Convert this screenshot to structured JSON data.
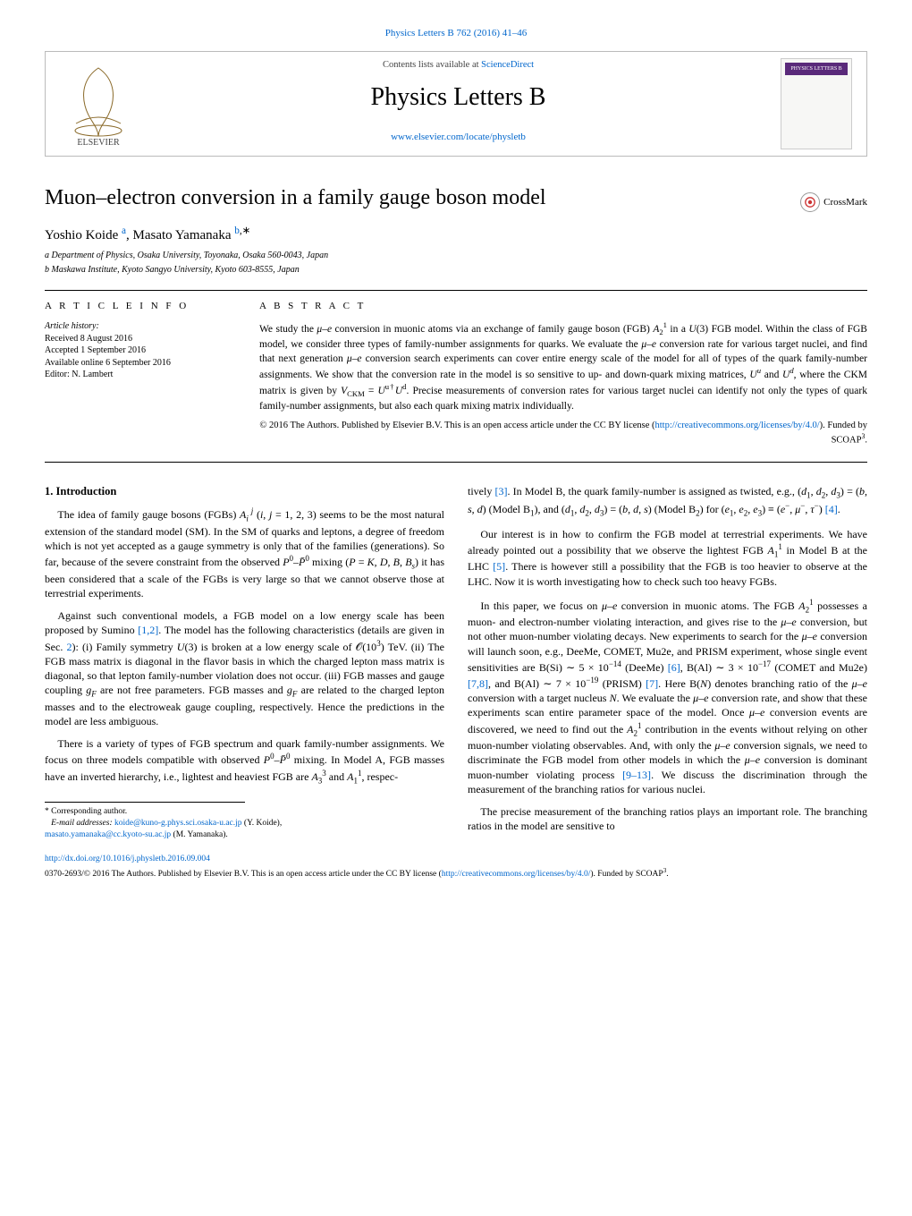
{
  "header": {
    "top_link": "Physics Letters B 762 (2016) 41–46",
    "contents_line_prefix": "Contents lists available at ",
    "contents_line_link": "ScienceDirect",
    "journal_title": "Physics Letters B",
    "journal_link": "www.elsevier.com/locate/physletb",
    "thumb_bar": "PHYSICS LETTERS B",
    "logo_text": "ELSEVIER"
  },
  "crossmark": {
    "label": "CrossMark"
  },
  "title": "Muon–electron conversion in a family gauge boson model",
  "authors_html": "Yoshio Koide <sup class='s'><span style='color:#0066cc'>a</span></sup>, Masato Yamanaka <sup class='s'><span style='color:#0066cc'>b</span>,∗</sup>",
  "affiliations": [
    "a  Department of Physics, Osaka University, Toyonaka, Osaka 560-0043, Japan",
    "b  Maskawa Institute, Kyoto Sangyo University, Kyoto 603-8555, Japan"
  ],
  "info": {
    "head": "A R T I C L E   I N F O",
    "history_label": "Article history:",
    "lines": [
      "Received 8 August 2016",
      "Accepted 1 September 2016",
      "Available online 6 September 2016",
      "Editor: N. Lambert"
    ]
  },
  "abstract": {
    "head": "A B S T R A C T",
    "body_html": "We study the <i>μ</i>–<i>e</i> conversion in muonic atoms via an exchange of family gauge boson (FGB) <i>A</i><sub class='s'>2</sub><sup class='s'>1</sup> in a <i>U</i>(3) FGB model. Within the class of FGB model, we consider three types of family-number assignments for quarks. We evaluate the <i>μ</i>–<i>e</i> conversion rate for various target nuclei, and find that next generation <i>μ</i>–<i>e</i> conversion search experiments can cover entire energy scale of the model for all of types of the quark family-number assignments. We show that the conversion rate in the model is so sensitive to up- and down-quark mixing matrices, <i>U<sup class='s'>u</sup></i> and <i>U<sup class='s'>d</sup></i>, where the CKM matrix is given by <i>V</i><sub class='s'>CKM</sub> = <i>U</i><sup class='s'>u†</sup><i>U</i><sup class='s'>d</sup>. Precise measurements of conversion rates for various target nuclei can identify not only the types of quark family-number assignments, but also each quark mixing matrix individually.",
    "license_html": "© 2016 The Authors. Published by Elsevier B.V. This is an open access article under the CC BY license (<a class='link'>http://creativecommons.org/licenses/by/4.0/</a>). Funded by SCOAP<sup class='s'>3</sup>."
  },
  "body": {
    "sec1_title": "1. Introduction",
    "left_paras": [
      "The idea of family gauge bosons (FGBs) <i>A<sub class='s'>i</sub><sup class='s'>&nbsp;j</sup></i> (<i>i</i>, <i>j</i> = 1, 2, 3) seems to be the most natural extension of the standard model (SM). In the SM of quarks and leptons, a degree of freedom which is not yet accepted as a gauge symmetry is only that of the families (generations). So far, because of the severe constraint from the observed <i>P</i><sup class='s'>0</sup>–<i>P̄</i><sup class='s'>0</sup> mixing (<i>P</i> = <i>K</i>, <i>D</i>, <i>B</i>, <i>B<sub class='s'>s</sub></i>) it has been considered that a scale of the FGBs is very large so that we cannot observe those at terrestrial experiments.",
      "Against such conventional models, a FGB model on a low energy scale has been proposed by Sumino <a class='link'>[1,2]</a>. The model has the following characteristics (details are given in Sec. <a class='link'>2</a>): (i) Family symmetry <i>U</i>(3) is broken at a low energy scale of 𝒪(10<sup class='s'>3</sup>) TeV. (ii) The FGB mass matrix is diagonal in the flavor basis in which the charged lepton mass matrix is diagonal, so that lepton family-number violation does not occur. (iii) FGB masses and gauge coupling <i>g<sub class='s'>F</sub></i> are not free parameters. FGB masses and <i>g<sub class='s'>F</sub></i> are related to the charged lepton masses and to the electroweak gauge coupling, respectively. Hence the predictions in the model are less ambiguous.",
      "There is a variety of types of FGB spectrum and quark family-number assignments. We focus on three models compatible with observed <i>P</i><sup class='s'>0</sup>–<i>P̄</i><sup class='s'>0</sup> mixing. In Model A, FGB masses have an inverted hierarchy, i.e., lightest and heaviest FGB are <i>A</i><sub class='s'>3</sub><sup class='s'>3</sup> and <i>A</i><sub class='s'>1</sub><sup class='s'>1</sup>, respec-"
    ],
    "right_paras": [
      "tively <a class='link'>[3]</a>. In Model B, the quark family-number is assigned as twisted, e.g., (<i>d</i><sub class='s'>1</sub>, <i>d</i><sub class='s'>2</sub>, <i>d</i><sub class='s'>3</sub>) = (<i>b</i>, <i>s</i>, <i>d</i>) (Model B<sub class='s'>1</sub>), and (<i>d</i><sub class='s'>1</sub>, <i>d</i><sub class='s'>2</sub>, <i>d</i><sub class='s'>3</sub>) = (<i>b</i>, <i>d</i>, <i>s</i>) (Model B<sub class='s'>2</sub>) for (<i>e</i><sub class='s'>1</sub>, <i>e</i><sub class='s'>2</sub>, <i>e</i><sub class='s'>3</sub>) ≡ (<i>e</i><sup class='s'>−</sup>, <i>μ</i><sup class='s'>−</sup>, <i>τ</i><sup class='s'>−</sup>) <a class='link'>[4]</a>.",
      "Our interest is in how to confirm the FGB model at terrestrial experiments. We have already pointed out a possibility that we observe the lightest FGB <i>A</i><sub class='s'>1</sub><sup class='s'>1</sup> in Model B at the LHC <a class='link'>[5]</a>. There is however still a possibility that the FGB is too heavier to observe at the LHC. Now it is worth investigating how to check such too heavy FGBs.",
      "In this paper, we focus on <i>μ</i>–<i>e</i> conversion in muonic atoms. The FGB <i>A</i><sub class='s'>2</sub><sup class='s'>1</sup> possesses a muon- and electron-number violating interaction, and gives rise to the <i>μ</i>–<i>e</i> conversion, but not other muon-number violating decays. New experiments to search for the <i>μ</i>–<i>e</i> conversion will launch soon, e.g., DeeMe, COMET, Mu2e, and PRISM experiment, whose single event sensitivities are B(Si) ∼ 5 × 10<sup class='s'>−14</sup> (DeeMe) <a class='link'>[6]</a>, B(Al) ∼ 3 × 10<sup class='s'>−17</sup> (COMET and Mu2e) <a class='link'>[7,8]</a>, and B(Al) ∼ 7 × 10<sup class='s'>−19</sup> (PRISM) <a class='link'>[7]</a>. Here B(<i>N</i>) denotes branching ratio of the <i>μ</i>–<i>e</i> conversion with a target nucleus <i>N</i>. We evaluate the <i>μ</i>–<i>e</i> conversion rate, and show that these experiments scan entire parameter space of the model. Once <i>μ</i>–<i>e</i> conversion events are discovered, we need to find out the <i>A</i><sub class='s'>2</sub><sup class='s'>1</sup> contribution in the events without relying on other muon-number violating observables. And, with only the <i>μ</i>–<i>e</i> conversion signals, we need to discriminate the FGB model from other models in which the <i>μ</i>–<i>e</i> conversion is dominant muon-number violating process <a class='link'>[9–13]</a>. We discuss the discrimination through the measurement of the branching ratios for various nuclei.",
      "The precise measurement of the branching ratios plays an important role. The branching ratios in the model are sensitive to"
    ]
  },
  "footnotes": {
    "corr": "*  Corresponding author.",
    "emails_label": "E-mail addresses:",
    "email1": "koide@kuno-g.phys.sci.osaka-u.ac.jp",
    "email1_who": "(Y. Koide),",
    "email2": "masato.yamanaka@cc.kyoto-su.ac.jp",
    "email2_who": "(M. Yamanaka)."
  },
  "bottom": {
    "doi": "http://dx.doi.org/10.1016/j.physletb.2016.09.004",
    "copyright_html": "0370-2693/© 2016 The Authors. Published by Elsevier B.V. This is an open access article under the CC BY license (<a class='link'>http://creativecommons.org/licenses/by/4.0/</a>). Funded by SCOAP<sup class='s'>3</sup>."
  },
  "colors": {
    "link": "#0066cc",
    "thumb_bar": "#5a2a7a",
    "green": "#2a8a2a",
    "rule": "#000000"
  }
}
